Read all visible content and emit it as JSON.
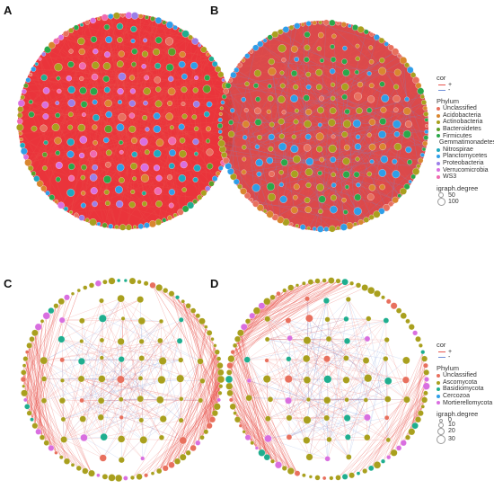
{
  "panels": [
    {
      "letter": "A",
      "key": "a",
      "edge_mode": "red-dense",
      "phylum_set": "bacteria"
    },
    {
      "letter": "B",
      "key": "b",
      "edge_mode": "red-blue-dense",
      "phylum_set": "bacteria"
    },
    {
      "letter": "C",
      "key": "c",
      "edge_mode": "sparse-clusters",
      "phylum_set": "fungi"
    },
    {
      "letter": "D",
      "key": "d",
      "edge_mode": "sparse-clusters",
      "phylum_set": "fungi"
    }
  ],
  "legend_bacteria": {
    "cor_title": "cor",
    "cor_entries": [
      {
        "label": "+",
        "color": "#e8554e"
      },
      {
        "label": "-",
        "color": "#6f8fd8"
      }
    ],
    "phylum_title": "Phylum",
    "phyla": [
      {
        "label": "Unclassified",
        "color": "#e8705e"
      },
      {
        "label": "Acidobacteria",
        "color": "#d9862f"
      },
      {
        "label": "Actinobacteria",
        "color": "#a9a01e"
      },
      {
        "label": "Bacteroidetes",
        "color": "#5d9e2a"
      },
      {
        "label": "Firmicutes",
        "color": "#2aa84a"
      },
      {
        "label": "Gemmatimonadetes",
        "color": "#1fae8f"
      },
      {
        "label": "Nitrospirae",
        "color": "#1ea9c0"
      },
      {
        "label": "Planctomycetes",
        "color": "#2f9ee8"
      },
      {
        "label": "Proteobacteria",
        "color": "#9b7fe8"
      },
      {
        "label": "Verrucomicrobia",
        "color": "#d96fe0"
      },
      {
        "label": "WS3",
        "color": "#f06ab0"
      }
    ],
    "degree_title": "igraph.degree",
    "degree_entries": [
      "50",
      "100"
    ]
  },
  "legend_fungi": {
    "cor_title": "cor",
    "cor_entries": [
      {
        "label": "+",
        "color": "#e8554e"
      },
      {
        "label": "-",
        "color": "#6f8fd8"
      }
    ],
    "phylum_title": "Phylum",
    "phyla": [
      {
        "label": "Unclassified",
        "color": "#e8705e"
      },
      {
        "label": "Ascomycota",
        "color": "#a9a01e"
      },
      {
        "label": "Basidiomycota",
        "color": "#1fae8f"
      },
      {
        "label": "Cercozoa",
        "color": "#2f9ee8"
      },
      {
        "label": "Mortierellomycota",
        "color": "#d96fe0"
      }
    ],
    "degree_title": "igraph.degree",
    "degree_entries": [
      "0",
      "10",
      "20",
      "30"
    ]
  }
}
